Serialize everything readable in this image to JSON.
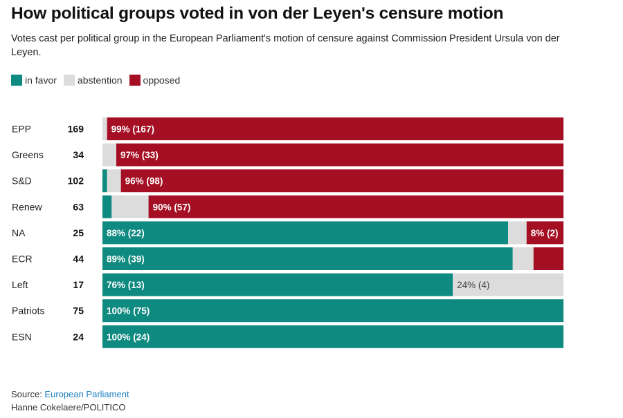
{
  "chart_data": {
    "type": "bar",
    "orientation": "horizontal",
    "stacked": true,
    "percent": true,
    "title": "How political groups voted in von der Leyen's censure motion",
    "subtitle": "Votes cast per political group in the European Parliament's motion of censure against Commission President Ursula von der Leyen.",
    "legend": [
      {
        "name": "in favor",
        "color": "#0f8a80"
      },
      {
        "name": "abstention",
        "color": "#dcdcdc"
      },
      {
        "name": "opposed",
        "color": "#a50f24"
      }
    ],
    "legend_position": "top-left",
    "series_keys": [
      "in_favor",
      "abstention",
      "opposed"
    ],
    "groups": [
      {
        "name": "EPP",
        "total": "169",
        "in_favor": 0,
        "abstention": 1,
        "opposed": 99,
        "labels": {
          "opposed": "99% (167)"
        }
      },
      {
        "name": "Greens",
        "total": "34",
        "in_favor": 0,
        "abstention": 3,
        "opposed": 97,
        "labels": {
          "opposed": "97% (33)"
        }
      },
      {
        "name": "S&D",
        "total": "102",
        "in_favor": 1,
        "abstention": 3,
        "opposed": 96,
        "labels": {
          "opposed": "96% (98)"
        }
      },
      {
        "name": "Renew",
        "total": "63",
        "in_favor": 2,
        "abstention": 8,
        "opposed": 90,
        "labels": {
          "opposed": "90% (57)"
        }
      },
      {
        "name": "NA",
        "total": "25",
        "in_favor": 88,
        "abstention": 4,
        "opposed": 8,
        "labels": {
          "in_favor": "88% (22)",
          "opposed": "8% (2)"
        }
      },
      {
        "name": "ECR",
        "total": "44",
        "in_favor": 89,
        "abstention": 4.5,
        "opposed": 6.5,
        "labels": {
          "in_favor": "89% (39)"
        }
      },
      {
        "name": "Left",
        "total": "17",
        "in_favor": 76,
        "abstention": 24,
        "opposed": 0,
        "labels": {
          "in_favor": "76% (13)",
          "abstention": "24% (4)"
        }
      },
      {
        "name": "Patriots",
        "total": "75",
        "in_favor": 100,
        "abstention": 0,
        "opposed": 0,
        "labels": {
          "in_favor": "100% (75)"
        }
      },
      {
        "name": "ESN",
        "total": "24",
        "in_favor": 100,
        "abstention": 0,
        "opposed": 0,
        "labels": {
          "in_favor": "100% (24)"
        }
      }
    ]
  },
  "footer": {
    "source_prefix": "Source: ",
    "source_link": "European Parliament",
    "credit": "Hanne Cokelaere/POLITICO"
  }
}
